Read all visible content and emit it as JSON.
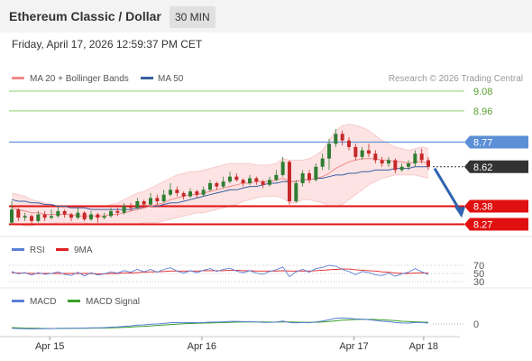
{
  "header": {
    "title": "Ethereum Classic / Dollar",
    "timeframe": "30 MIN"
  },
  "timestamp": "Friday, April 17, 2026 12:59:37 PM CET",
  "legend": {
    "ma20_label": "MA 20 + Bollinger Bands",
    "ma50_label": "MA 50",
    "copyright": "Research © 2026 Trading Central"
  },
  "colors": {
    "green_level": "#8fd16e",
    "blue_level": "#5b8fd6",
    "red_level": "#e01010",
    "current": "#333333",
    "ma20": "#f08a8a",
    "ma50": "#3a5fa0",
    "bollinger_fill": "#fde3e3",
    "candle_up": "#2e7d32",
    "candle_down": "#c62828",
    "arrow": "#2f62b0",
    "rsi": "#5b7fd6",
    "rsi_ma": "#e02020",
    "macd": "#5b7fd6",
    "macd_signal": "#3aa02a"
  },
  "chart_data": [
    {
      "type": "line",
      "title": "Ethereum Classic / Dollar",
      "ylim": [
        8.22,
        9.16
      ],
      "xlim": [
        0,
        70
      ],
      "x_ticks": [
        {
          "x": 6,
          "label": "Apr 15"
        },
        {
          "x": 30,
          "label": "Apr 16"
        },
        {
          "x": 54,
          "label": "Apr 17"
        },
        {
          "x": 65,
          "label": "Apr 18"
        }
      ],
      "levels": [
        {
          "value": 9.08,
          "label": "9.08",
          "kind": "resistance"
        },
        {
          "value": 8.96,
          "label": "8.96",
          "kind": "resistance"
        },
        {
          "value": 8.77,
          "label": "8.77",
          "kind": "pivot"
        },
        {
          "value": 8.62,
          "label": "8.62",
          "kind": "current"
        },
        {
          "value": 8.38,
          "label": "8.38",
          "kind": "support"
        },
        {
          "value": 8.27,
          "label": "8.27",
          "kind": "support"
        }
      ],
      "candles": [
        [
          8.28,
          8.36,
          8.41,
          8.27
        ],
        [
          8.36,
          8.31,
          8.37,
          8.29
        ],
        [
          8.31,
          8.32,
          8.34,
          8.29
        ],
        [
          8.32,
          8.29,
          8.33,
          8.27
        ],
        [
          8.29,
          8.33,
          8.35,
          8.28
        ],
        [
          8.33,
          8.31,
          8.35,
          8.29
        ],
        [
          8.31,
          8.32,
          8.36,
          8.3
        ],
        [
          8.32,
          8.35,
          8.38,
          8.31
        ],
        [
          8.35,
          8.33,
          8.36,
          8.31
        ],
        [
          8.33,
          8.31,
          8.34,
          8.29
        ],
        [
          8.31,
          8.34,
          8.37,
          8.3
        ],
        [
          8.34,
          8.3,
          8.35,
          8.29
        ],
        [
          8.3,
          8.33,
          8.35,
          8.29
        ],
        [
          8.33,
          8.31,
          8.34,
          8.28
        ],
        [
          8.31,
          8.32,
          8.34,
          8.3
        ],
        [
          8.32,
          8.35,
          8.37,
          8.31
        ],
        [
          8.35,
          8.34,
          8.37,
          8.32
        ],
        [
          8.34,
          8.38,
          8.4,
          8.33
        ],
        [
          8.38,
          8.37,
          8.4,
          8.35
        ],
        [
          8.37,
          8.41,
          8.43,
          8.36
        ],
        [
          8.41,
          8.39,
          8.42,
          8.37
        ],
        [
          8.39,
          8.43,
          8.46,
          8.38
        ],
        [
          8.43,
          8.41,
          8.45,
          8.39
        ],
        [
          8.41,
          8.45,
          8.48,
          8.4
        ],
        [
          8.45,
          8.48,
          8.52,
          8.44
        ],
        [
          8.48,
          8.46,
          8.5,
          8.44
        ],
        [
          8.46,
          8.44,
          8.47,
          8.42
        ],
        [
          8.44,
          8.47,
          8.49,
          8.43
        ],
        [
          8.47,
          8.45,
          8.48,
          8.43
        ],
        [
          8.45,
          8.48,
          8.5,
          8.44
        ],
        [
          8.48,
          8.52,
          8.54,
          8.47
        ],
        [
          8.52,
          8.5,
          8.53,
          8.48
        ],
        [
          8.5,
          8.53,
          8.56,
          8.49
        ],
        [
          8.53,
          8.56,
          8.59,
          8.52
        ],
        [
          8.56,
          8.54,
          8.58,
          8.53
        ],
        [
          8.54,
          8.52,
          8.55,
          8.5
        ],
        [
          8.52,
          8.55,
          8.57,
          8.51
        ],
        [
          8.55,
          8.53,
          8.56,
          8.51
        ],
        [
          8.53,
          8.51,
          8.54,
          8.49
        ],
        [
          8.51,
          8.54,
          8.56,
          8.5
        ],
        [
          8.54,
          8.57,
          8.6,
          8.53
        ],
        [
          8.57,
          8.65,
          8.68,
          8.56
        ],
        [
          8.65,
          8.41,
          8.66,
          8.39
        ],
        [
          8.41,
          8.52,
          8.54,
          8.4
        ],
        [
          8.52,
          8.58,
          8.6,
          8.5
        ],
        [
          8.58,
          8.54,
          8.6,
          8.52
        ],
        [
          8.54,
          8.62,
          8.64,
          8.53
        ],
        [
          8.62,
          8.67,
          8.7,
          8.6
        ],
        [
          8.67,
          8.76,
          8.79,
          8.6
        ],
        [
          8.76,
          8.82,
          8.85,
          8.74
        ],
        [
          8.82,
          8.78,
          8.84,
          8.75
        ],
        [
          8.78,
          8.74,
          8.8,
          8.72
        ],
        [
          8.74,
          8.68,
          8.76,
          8.66
        ],
        [
          8.68,
          8.72,
          8.74,
          8.66
        ],
        [
          8.72,
          8.7,
          8.76,
          8.68
        ],
        [
          8.7,
          8.66,
          8.72,
          8.64
        ],
        [
          8.66,
          8.64,
          8.68,
          8.62
        ],
        [
          8.64,
          8.66,
          8.68,
          8.62
        ],
        [
          8.66,
          8.6,
          8.67,
          8.58
        ],
        [
          8.6,
          8.62,
          8.64,
          8.59
        ],
        [
          8.62,
          8.64,
          8.66,
          8.6
        ],
        [
          8.64,
          8.7,
          8.72,
          8.62
        ],
        [
          8.7,
          8.66,
          8.73,
          8.64
        ],
        [
          8.66,
          8.62,
          8.68,
          8.6
        ]
      ],
      "ma20": [
        8.37,
        8.36,
        8.35,
        8.34,
        8.34,
        8.33,
        8.33,
        8.33,
        8.33,
        8.33,
        8.32,
        8.32,
        8.32,
        8.32,
        8.32,
        8.33,
        8.33,
        8.34,
        8.35,
        8.36,
        8.37,
        8.38,
        8.39,
        8.4,
        8.42,
        8.43,
        8.44,
        8.45,
        8.45,
        8.46,
        8.47,
        8.48,
        8.49,
        8.5,
        8.51,
        8.52,
        8.52,
        8.53,
        8.53,
        8.53,
        8.54,
        8.55,
        8.53,
        8.53,
        8.54,
        8.54,
        8.55,
        8.56,
        8.58,
        8.61,
        8.63,
        8.65,
        8.66,
        8.67,
        8.67,
        8.67,
        8.66,
        8.66,
        8.65,
        8.65,
        8.64,
        8.65,
        8.65,
        8.64
      ],
      "ma50": [
        8.42,
        8.41,
        8.41,
        8.4,
        8.4,
        8.39,
        8.39,
        8.38,
        8.38,
        8.37,
        8.37,
        8.37,
        8.36,
        8.36,
        8.36,
        8.36,
        8.36,
        8.36,
        8.36,
        8.37,
        8.37,
        8.38,
        8.38,
        8.39,
        8.4,
        8.4,
        8.41,
        8.42,
        8.43,
        8.44,
        8.45,
        8.46,
        8.47,
        8.48,
        8.48,
        8.49,
        8.5,
        8.5,
        8.51,
        8.52,
        8.52,
        8.53,
        8.53,
        8.53,
        8.54,
        8.54,
        8.55,
        8.55,
        8.56,
        8.57,
        8.57,
        8.58,
        8.58,
        8.59,
        8.59,
        8.6,
        8.6,
        8.6,
        8.61,
        8.61,
        8.61,
        8.62,
        8.62,
        8.62
      ],
      "bb_upper": [
        8.46,
        8.45,
        8.44,
        8.42,
        8.41,
        8.4,
        8.39,
        8.38,
        8.37,
        8.37,
        8.37,
        8.37,
        8.37,
        8.37,
        8.38,
        8.39,
        8.4,
        8.42,
        8.44,
        8.46,
        8.47,
        8.49,
        8.51,
        8.53,
        8.55,
        8.57,
        8.58,
        8.59,
        8.59,
        8.6,
        8.61,
        8.62,
        8.63,
        8.64,
        8.64,
        8.64,
        8.64,
        8.63,
        8.63,
        8.63,
        8.64,
        8.67,
        8.66,
        8.66,
        8.66,
        8.67,
        8.69,
        8.72,
        8.78,
        8.84,
        8.87,
        8.88,
        8.87,
        8.86,
        8.84,
        8.81,
        8.78,
        8.76,
        8.74,
        8.73,
        8.72,
        8.73,
        8.74,
        8.73
      ],
      "bb_lower": [
        8.28,
        8.27,
        8.26,
        8.26,
        8.27,
        8.27,
        8.27,
        8.28,
        8.28,
        8.28,
        8.28,
        8.28,
        8.27,
        8.27,
        8.27,
        8.27,
        8.27,
        8.27,
        8.27,
        8.27,
        8.28,
        8.28,
        8.28,
        8.29,
        8.3,
        8.31,
        8.32,
        8.33,
        8.34,
        8.34,
        8.35,
        8.36,
        8.37,
        8.38,
        8.39,
        8.41,
        8.42,
        8.43,
        8.44,
        8.44,
        8.44,
        8.43,
        8.4,
        8.4,
        8.42,
        8.42,
        8.41,
        8.4,
        8.38,
        8.38,
        8.39,
        8.42,
        8.45,
        8.48,
        8.51,
        8.53,
        8.55,
        8.56,
        8.57,
        8.57,
        8.57,
        8.57,
        8.56,
        8.55
      ],
      "projection": [
        [
          61,
          8.61
        ],
        [
          65,
          8.31
        ]
      ]
    },
    {
      "type": "line",
      "title": "",
      "legend": [
        "RSI",
        "9MA"
      ],
      "ylim": [
        30,
        70
      ],
      "y_ticks": [
        {
          "value": 70,
          "label": "70"
        },
        {
          "value": 50,
          "label": "50"
        },
        {
          "value": 30,
          "label": "30"
        }
      ],
      "series": [
        {
          "name": "RSI",
          "values": [
            55,
            49,
            52,
            46,
            52,
            48,
            50,
            54,
            48,
            45,
            53,
            44,
            52,
            46,
            49,
            54,
            51,
            57,
            53,
            60,
            54,
            60,
            53,
            60,
            64,
            56,
            51,
            57,
            52,
            58,
            62,
            55,
            60,
            63,
            56,
            52,
            57,
            51,
            48,
            55,
            59,
            66,
            42,
            54,
            60,
            53,
            62,
            65,
            70,
            68,
            60,
            55,
            47,
            55,
            52,
            47,
            45,
            51,
            43,
            49,
            53,
            62,
            54,
            47
          ]
        },
        {
          "name": "9MA",
          "values": [
            52,
            51,
            51,
            50,
            50,
            50,
            50,
            50,
            50,
            50,
            50,
            50,
            50,
            49,
            49,
            50,
            50,
            51,
            51,
            52,
            53,
            54,
            54,
            55,
            56,
            56,
            56,
            56,
            56,
            57,
            57,
            57,
            57,
            58,
            58,
            57,
            57,
            56,
            56,
            56,
            56,
            57,
            56,
            56,
            56,
            56,
            57,
            58,
            59,
            60,
            61,
            61,
            59,
            58,
            57,
            56,
            54,
            53,
            51,
            50,
            50,
            51,
            51,
            51
          ]
        }
      ]
    },
    {
      "type": "line",
      "title": "",
      "legend": [
        "MACD",
        "MACD Signal"
      ],
      "ylim": [
        -0.1,
        0.1
      ],
      "y_ticks": [
        {
          "value": 0,
          "label": "0"
        }
      ],
      "series": [
        {
          "name": "MACD",
          "values": [
            -0.03,
            -0.032,
            -0.033,
            -0.034,
            -0.033,
            -0.033,
            -0.032,
            -0.03,
            -0.03,
            -0.03,
            -0.028,
            -0.028,
            -0.026,
            -0.026,
            -0.025,
            -0.022,
            -0.02,
            -0.016,
            -0.013,
            -0.008,
            -0.006,
            -0.002,
            0.0,
            0.004,
            0.009,
            0.01,
            0.009,
            0.01,
            0.009,
            0.01,
            0.013,
            0.013,
            0.015,
            0.018,
            0.018,
            0.016,
            0.016,
            0.014,
            0.011,
            0.011,
            0.013,
            0.02,
            0.01,
            0.008,
            0.01,
            0.009,
            0.014,
            0.02,
            0.03,
            0.04,
            0.042,
            0.04,
            0.035,
            0.034,
            0.03,
            0.025,
            0.019,
            0.016,
            0.01,
            0.007,
            0.006,
            0.01,
            0.01,
            0.006
          ]
        },
        {
          "name": "MACD Signal",
          "values": [
            -0.025,
            -0.026,
            -0.028,
            -0.029,
            -0.03,
            -0.031,
            -0.031,
            -0.031,
            -0.031,
            -0.03,
            -0.03,
            -0.03,
            -0.029,
            -0.028,
            -0.028,
            -0.027,
            -0.025,
            -0.023,
            -0.021,
            -0.018,
            -0.016,
            -0.013,
            -0.01,
            -0.007,
            -0.004,
            -0.001,
            0.001,
            0.003,
            0.005,
            0.006,
            0.007,
            0.009,
            0.01,
            0.011,
            0.013,
            0.013,
            0.014,
            0.014,
            0.014,
            0.013,
            0.013,
            0.014,
            0.014,
            0.013,
            0.012,
            0.012,
            0.012,
            0.014,
            0.017,
            0.022,
            0.026,
            0.029,
            0.031,
            0.032,
            0.032,
            0.031,
            0.029,
            0.026,
            0.023,
            0.019,
            0.017,
            0.015,
            0.013,
            0.012
          ]
        }
      ]
    }
  ]
}
